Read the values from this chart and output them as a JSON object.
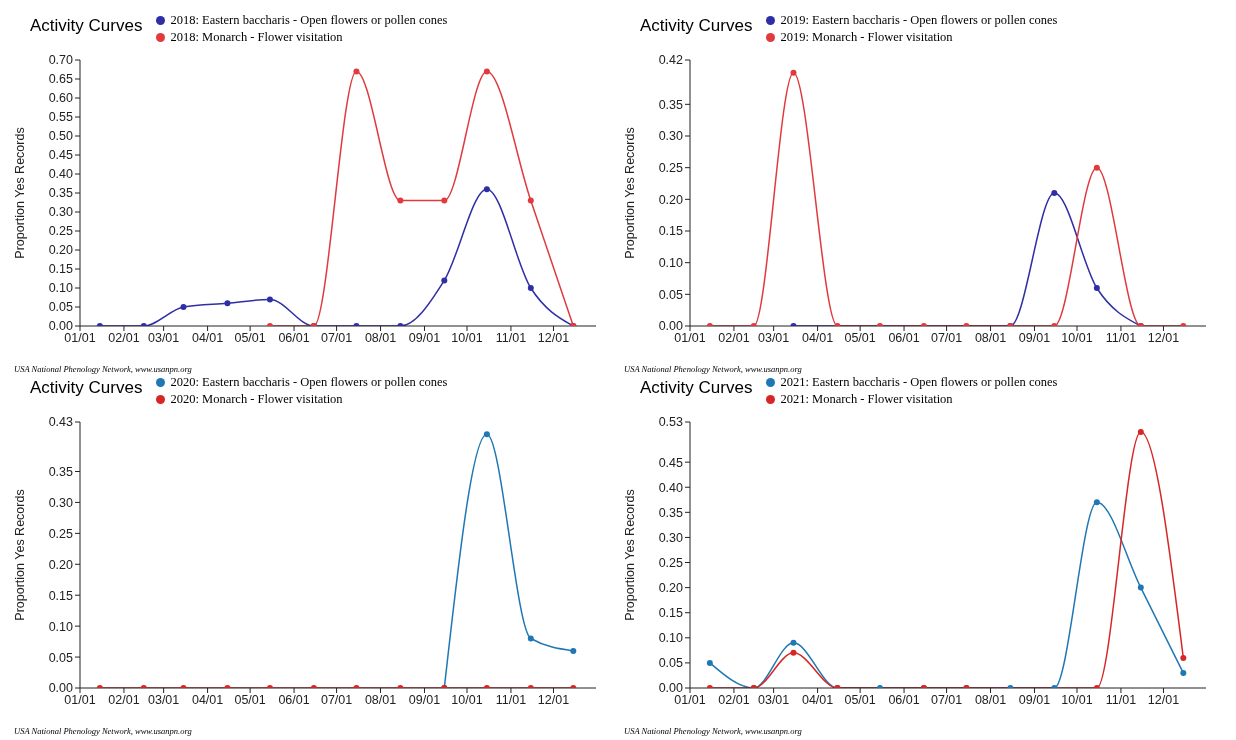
{
  "chart_data": [
    {
      "type": "line",
      "title": "Activity Curves",
      "ylabel": "Proportion Yes Records",
      "legend": "top",
      "marker": "circle",
      "xlim": [
        "--01-01",
        "--12-31"
      ],
      "xticks": [
        {
          "value": "--01-01",
          "label": "01/01"
        },
        {
          "value": "--02-01",
          "label": "02/01"
        },
        {
          "value": "--03-01",
          "label": "03/01"
        },
        {
          "value": "--04-01",
          "label": "04/01"
        },
        {
          "value": "--05-01",
          "label": "05/01"
        },
        {
          "value": "--06-01",
          "label": "06/01"
        },
        {
          "value": "--07-01",
          "label": "07/01"
        },
        {
          "value": "--08-01",
          "label": "08/01"
        },
        {
          "value": "--09-01",
          "label": "09/01"
        },
        {
          "value": "--10-01",
          "label": "10/01"
        },
        {
          "value": "--11-01",
          "label": "11/01"
        },
        {
          "value": "--12-01",
          "label": "12/01"
        }
      ],
      "ylim": [
        0,
        0.7
      ],
      "yticks": [
        {
          "value": 0,
          "label": "0.00"
        },
        {
          "value": 0.05,
          "label": "0.05"
        },
        {
          "value": 0.1,
          "label": "0.10"
        },
        {
          "value": 0.15,
          "label": "0.15"
        },
        {
          "value": 0.2,
          "label": "0.20"
        },
        {
          "value": 0.25,
          "label": "0.25"
        },
        {
          "value": 0.3,
          "label": "0.30"
        },
        {
          "value": 0.35,
          "label": "0.35"
        },
        {
          "value": 0.4,
          "label": "0.40"
        },
        {
          "value": 0.45,
          "label": "0.45"
        },
        {
          "value": 0.5,
          "label": "0.50"
        },
        {
          "value": 0.55,
          "label": "0.55"
        },
        {
          "value": 0.6,
          "label": "0.60"
        },
        {
          "value": 0.65,
          "label": "0.65"
        },
        {
          "value": 0.7,
          "label": "0.70"
        }
      ],
      "series": [
        {
          "name": "2018: Eastern baccharis - Open flowers or pollen cones",
          "color": "#2e2ea6",
          "x": [
            "--01-15",
            "--02-15",
            "--03-15",
            "--04-15",
            "--05-15",
            "--06-15",
            "--07-15",
            "--08-15",
            "--09-15",
            "--10-15",
            "--11-15",
            "--12-15"
          ],
          "values": [
            0,
            0,
            0.05,
            0.06,
            0.07,
            0,
            0,
            0,
            0.12,
            0.36,
            0.1,
            0
          ]
        },
        {
          "name": "2018: Monarch - Flower visitation",
          "color": "#e03a3e",
          "x": [
            "--05-15",
            "--06-15",
            "--07-15",
            "--08-15",
            "--09-15",
            "--10-15",
            "--11-15",
            "--12-15"
          ],
          "values": [
            0,
            0,
            0.67,
            0.33,
            0.33,
            0.67,
            0.33,
            0
          ]
        }
      ],
      "annotations": [
        "USA National Phenology Network, www.usanpn.org"
      ]
    },
    {
      "type": "line",
      "title": "Activity Curves",
      "ylabel": "Proportion Yes Records",
      "legend": "top",
      "marker": "circle",
      "xlim": [
        "--01-01",
        "--12-31"
      ],
      "xticks": [
        {
          "value": "--01-01",
          "label": "01/01"
        },
        {
          "value": "--02-01",
          "label": "02/01"
        },
        {
          "value": "--03-01",
          "label": "03/01"
        },
        {
          "value": "--04-01",
          "label": "04/01"
        },
        {
          "value": "--05-01",
          "label": "05/01"
        },
        {
          "value": "--06-01",
          "label": "06/01"
        },
        {
          "value": "--07-01",
          "label": "07/01"
        },
        {
          "value": "--08-01",
          "label": "08/01"
        },
        {
          "value": "--09-01",
          "label": "09/01"
        },
        {
          "value": "--10-01",
          "label": "10/01"
        },
        {
          "value": "--11-01",
          "label": "11/01"
        },
        {
          "value": "--12-01",
          "label": "12/01"
        }
      ],
      "ylim": [
        0,
        0.42
      ],
      "yticks": [
        {
          "value": 0,
          "label": "0.00"
        },
        {
          "value": 0.05,
          "label": "0.05"
        },
        {
          "value": 0.1,
          "label": "0.10"
        },
        {
          "value": 0.15,
          "label": "0.15"
        },
        {
          "value": 0.2,
          "label": "0.20"
        },
        {
          "value": 0.25,
          "label": "0.25"
        },
        {
          "value": 0.3,
          "label": "0.30"
        },
        {
          "value": 0.35,
          "label": "0.35"
        },
        {
          "value": 0.42,
          "label": "0.42"
        }
      ],
      "series": [
        {
          "name": "2019: Eastern baccharis - Open flowers or pollen cones",
          "color": "#2e2ea6",
          "x": [
            "--03-15",
            "--08-15",
            "--09-15",
            "--10-15",
            "--11-15"
          ],
          "values": [
            0,
            0,
            0.21,
            0.06,
            0
          ]
        },
        {
          "name": "2019: Monarch - Flower visitation",
          "color": "#e03a3e",
          "x": [
            "--01-15",
            "--02-15",
            "--03-15",
            "--04-15",
            "--05-15",
            "--06-15",
            "--07-15",
            "--08-15",
            "--09-15",
            "--10-15",
            "--11-15",
            "--12-15"
          ],
          "values": [
            0,
            0,
            0.4,
            0,
            0,
            0,
            0,
            0,
            0,
            0.25,
            0,
            0
          ]
        }
      ],
      "annotations": [
        "USA National Phenology Network, www.usanpn.org"
      ]
    },
    {
      "type": "line",
      "title": "Activity Curves",
      "ylabel": "Proportion Yes Records",
      "legend": "top",
      "marker": "circle",
      "xlim": [
        "--01-01",
        "--12-31"
      ],
      "xticks": [
        {
          "value": "--01-01",
          "label": "01/01"
        },
        {
          "value": "--02-01",
          "label": "02/01"
        },
        {
          "value": "--03-01",
          "label": "03/01"
        },
        {
          "value": "--04-01",
          "label": "04/01"
        },
        {
          "value": "--05-01",
          "label": "05/01"
        },
        {
          "value": "--06-01",
          "label": "06/01"
        },
        {
          "value": "--07-01",
          "label": "07/01"
        },
        {
          "value": "--08-01",
          "label": "08/01"
        },
        {
          "value": "--09-01",
          "label": "09/01"
        },
        {
          "value": "--10-01",
          "label": "10/01"
        },
        {
          "value": "--11-01",
          "label": "11/01"
        },
        {
          "value": "--12-01",
          "label": "12/01"
        }
      ],
      "ylim": [
        0,
        0.43
      ],
      "yticks": [
        {
          "value": 0,
          "label": "0.00"
        },
        {
          "value": 0.05,
          "label": "0.05"
        },
        {
          "value": 0.1,
          "label": "0.10"
        },
        {
          "value": 0.15,
          "label": "0.15"
        },
        {
          "value": 0.2,
          "label": "0.20"
        },
        {
          "value": 0.25,
          "label": "0.25"
        },
        {
          "value": 0.3,
          "label": "0.30"
        },
        {
          "value": 0.35,
          "label": "0.35"
        },
        {
          "value": 0.43,
          "label": "0.43"
        }
      ],
      "series": [
        {
          "name": "2020: Eastern baccharis - Open flowers or pollen cones",
          "color": "#1f77b4",
          "x": [
            "--09-15",
            "--10-15",
            "--11-15",
            "--12-15"
          ],
          "values": [
            0,
            0.41,
            0.08,
            0.06
          ]
        },
        {
          "name": "2020: Monarch - Flower visitation",
          "color": "#d62728",
          "x": [
            "--01-15",
            "--02-15",
            "--03-15",
            "--04-15",
            "--05-15",
            "--06-15",
            "--07-15",
            "--08-15",
            "--09-15",
            "--10-15",
            "--11-15",
            "--12-15"
          ],
          "values": [
            0,
            0,
            0,
            0,
            0,
            0,
            0,
            0,
            0,
            0,
            0,
            0
          ]
        }
      ],
      "annotations": [
        "USA National Phenology Network, www.usanpn.org"
      ]
    },
    {
      "type": "line",
      "title": "Activity Curves",
      "ylabel": "Proportion Yes Records",
      "legend": "top",
      "marker": "circle",
      "xlim": [
        "--01-01",
        "--12-31"
      ],
      "xticks": [
        {
          "value": "--01-01",
          "label": "01/01"
        },
        {
          "value": "--02-01",
          "label": "02/01"
        },
        {
          "value": "--03-01",
          "label": "03/01"
        },
        {
          "value": "--04-01",
          "label": "04/01"
        },
        {
          "value": "--05-01",
          "label": "05/01"
        },
        {
          "value": "--06-01",
          "label": "06/01"
        },
        {
          "value": "--07-01",
          "label": "07/01"
        },
        {
          "value": "--08-01",
          "label": "08/01"
        },
        {
          "value": "--09-01",
          "label": "09/01"
        },
        {
          "value": "--10-01",
          "label": "10/01"
        },
        {
          "value": "--11-01",
          "label": "11/01"
        },
        {
          "value": "--12-01",
          "label": "12/01"
        }
      ],
      "ylim": [
        0,
        0.53
      ],
      "yticks": [
        {
          "value": 0,
          "label": "0.00"
        },
        {
          "value": 0.05,
          "label": "0.05"
        },
        {
          "value": 0.1,
          "label": "0.10"
        },
        {
          "value": 0.15,
          "label": "0.15"
        },
        {
          "value": 0.2,
          "label": "0.20"
        },
        {
          "value": 0.25,
          "label": "0.25"
        },
        {
          "value": 0.3,
          "label": "0.30"
        },
        {
          "value": 0.35,
          "label": "0.35"
        },
        {
          "value": 0.4,
          "label": "0.40"
        },
        {
          "value": 0.45,
          "label": "0.45"
        },
        {
          "value": 0.53,
          "label": "0.53"
        }
      ],
      "series": [
        {
          "name": "2021: Eastern baccharis - Open flowers or pollen cones",
          "color": "#1f77b4",
          "x": [
            "--01-15",
            "--02-15",
            "--03-15",
            "--04-15",
            "--05-15",
            "--06-15",
            "--07-15",
            "--08-15",
            "--09-15",
            "--10-15",
            "--11-15",
            "--12-15"
          ],
          "values": [
            0.05,
            0,
            0.09,
            0,
            0,
            0,
            0,
            0,
            0,
            0.37,
            0.2,
            0.03
          ]
        },
        {
          "name": "2021: Monarch - Flower visitation",
          "color": "#d62728",
          "x": [
            "--01-15",
            "--02-15",
            "--03-15",
            "--04-15",
            "--06-15",
            "--07-15",
            "--10-15",
            "--11-15",
            "--12-15"
          ],
          "values": [
            0,
            0,
            0.07,
            0,
            0,
            0,
            0,
            0.51,
            0.06
          ]
        }
      ],
      "annotations": [
        "USA National Phenology Network, www.usanpn.org"
      ]
    }
  ]
}
